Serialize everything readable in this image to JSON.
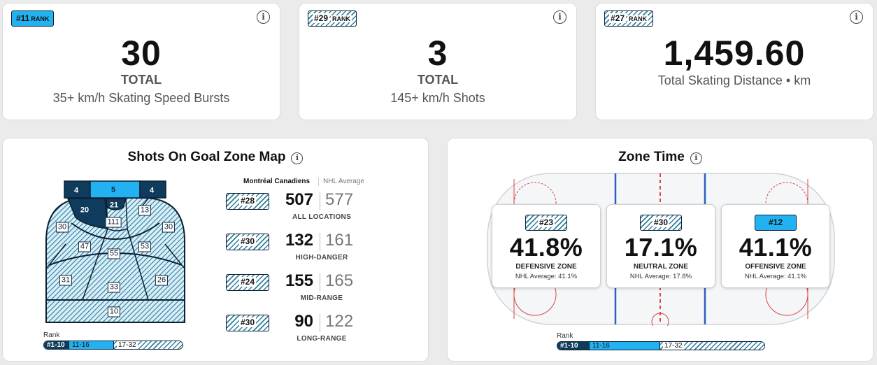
{
  "stats": [
    {
      "rank": "#11",
      "rank_label": "RANK",
      "value": "30",
      "label": "TOTAL",
      "desc": "35+ km/h Skating Speed Bursts"
    },
    {
      "rank": "#29",
      "rank_label": "RANK",
      "value": "3",
      "label": "TOTAL",
      "desc": "145+ km/h Shots"
    },
    {
      "rank": "#27",
      "rank_label": "RANK",
      "value": "1,459.60",
      "desc": "Total Skating Distance • km"
    }
  ],
  "shots_map": {
    "title": "Shots On Goal Zone Map",
    "zones": {
      "top_left": "4",
      "top_center": "5",
      "top_right": "4",
      "left_inner": "20",
      "slot_top": "21",
      "right_inner": "13",
      "left_outer": "30",
      "center_upper": "111",
      "right_outer": "30",
      "left_mid": "47",
      "center_mid": "55",
      "right_mid": "53",
      "left_low": "31",
      "center_low": "33",
      "right_low": "26",
      "bottom": "10"
    },
    "team_header": "Montréal Canadiens",
    "avg_header": "NHL Average",
    "rows": [
      {
        "rank": "#28",
        "value": "507",
        "avg": "577",
        "label": "ALL LOCATIONS"
      },
      {
        "rank": "#30",
        "value": "132",
        "avg": "161",
        "label": "HIGH-DANGER"
      },
      {
        "rank": "#24",
        "value": "155",
        "avg": "165",
        "label": "MID-RANGE"
      },
      {
        "rank": "#30",
        "value": "90",
        "avg": "122",
        "label": "LONG-RANGE"
      }
    ]
  },
  "zone_time": {
    "title": "Zone Time",
    "zones": [
      {
        "rank": "#23",
        "pct": "41.8%",
        "name": "DEFENSIVE ZONE",
        "avg": "NHL Average: 41.1%"
      },
      {
        "rank": "#30",
        "pct": "17.1%",
        "name": "NEUTRAL ZONE",
        "avg": "NHL Average: 17.8%"
      },
      {
        "rank": "#12",
        "pct": "41.1%",
        "name": "OFFENSIVE ZONE",
        "avg": "NHL Average: 41.1%"
      }
    ]
  },
  "legend": {
    "title": "Rank",
    "seg1": "#1-10",
    "seg2": "11-16",
    "seg3": "17-32"
  },
  "colors": {
    "navy": "#0f3c5c",
    "blue": "#22b2f2",
    "hatch": "#2e7d9a"
  },
  "icons": {
    "info": "info-icon"
  }
}
